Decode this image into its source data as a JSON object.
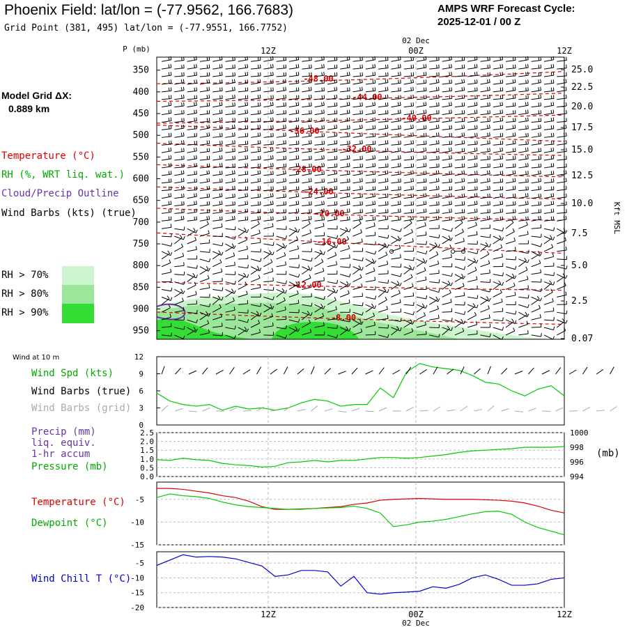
{
  "header": {
    "title": "Phoenix Field:  lat/lon = (-77.9562, 166.7683)",
    "subtitle": "Grid Point (381, 495) lat/lon = (-77.9551, 166.7752)",
    "cycle_line1": "AMPS WRF Forecast Cycle:",
    "cycle_line2": "2025-12-01 / 00  Z",
    "grid_label": "Model Grid ΔX:",
    "grid_value": "0.889 km"
  },
  "colors": {
    "temperature": "#dd0000",
    "rh": "#00aa00",
    "cloud": "#6633aa",
    "wind": "#000000",
    "grid_wind": "#aaaaaa",
    "pressure": "#00cc00",
    "windchill": "#0000cc",
    "rh70": "#cdf5cd",
    "rh80": "#9be69b",
    "rh90": "#33dd33"
  },
  "legend": {
    "temperature": "Temperature (°C)",
    "rh": "RH (%, WRT liq. wat.)",
    "cloud": "Cloud/Precip Outline",
    "wind": "Wind Barbs (kts) (true)",
    "rh70": "RH > 70%",
    "rh80": "RH > 80%",
    "rh90": "RH > 90%"
  },
  "chart_data": [
    {
      "type": "line",
      "name": "cross-section",
      "ylabel": "P (mb)",
      "ylabel_right": "Kft MSL",
      "time_ticks": [
        "12Z",
        "00Z",
        "12Z"
      ],
      "date_label": "02 Dec",
      "pressure_ticks": [
        350,
        400,
        450,
        500,
        550,
        600,
        650,
        700,
        750,
        800,
        850,
        900,
        950
      ],
      "height_ticks": [
        "25.0",
        "22.5",
        "20.0",
        "17.5",
        "15.0",
        "12.5",
        "10.0",
        "7.5",
        "5.0",
        "2.5",
        "0.07"
      ],
      "temperature_contours": [
        {
          "label": "-48.00",
          "p": 370
        },
        {
          "label": "-44.00",
          "p": 412
        },
        {
          "label": "-40.00",
          "p": 460
        },
        {
          "label": "-36.00",
          "p": 490
        },
        {
          "label": "-32.00",
          "p": 532
        },
        {
          "label": "-28.00",
          "p": 578
        },
        {
          "label": "-24.00",
          "p": 630
        },
        {
          "label": "-20.00",
          "p": 680
        },
        {
          "label": "-16.00",
          "p": 745
        },
        {
          "label": "-12.00",
          "p": 845
        },
        {
          "label": "-8.00",
          "p": 920
        }
      ]
    },
    {
      "type": "line",
      "name": "wind-10m",
      "section_title": "Wind at 10 m",
      "labels": {
        "speed": "Wind Spd (kts)",
        "barbs_true": "Wind Barbs (true)",
        "barbs_grid": "Wind Barbs (grid)"
      },
      "ylim": [
        0,
        12
      ],
      "yticks": [
        0,
        3,
        6,
        9,
        12
      ],
      "values": [
        5.6,
        4.2,
        3.6,
        3.3,
        3.6,
        2.6,
        3.3,
        2.8,
        3.0,
        2.6,
        3.0,
        3.9,
        4.5,
        4.2,
        3.3,
        3.6,
        3.6,
        6.5,
        4.8,
        9.3,
        10.8,
        10.2,
        9.9,
        9.6,
        8.7,
        7.5,
        7.2,
        6.0,
        5.1,
        6.3,
        6.9,
        5.1
      ]
    },
    {
      "type": "line",
      "name": "precip-pressure",
      "labels": {
        "precip": "Precip (mm)",
        "liq": "liq. equiv.",
        "accum": "1-hr accum",
        "pressure": "Pressure (mb)",
        "unit_right": "(mb)"
      },
      "left_ylim": [
        0,
        2.5
      ],
      "left_ticks": [
        "0.0",
        "0.5",
        "1.0",
        "1.5",
        "2.0",
        "2.5"
      ],
      "right_ylim": [
        994,
        1000
      ],
      "right_ticks": [
        994,
        996,
        998,
        1000
      ],
      "pressure_values": [
        996.3,
        996.2,
        996.5,
        996.3,
        996.2,
        995.8,
        995.6,
        995.5,
        995.3,
        995.4,
        995.9,
        996.0,
        996.2,
        996.0,
        996.2,
        996.2,
        996.4,
        996.6,
        996.6,
        996.5,
        996.6,
        996.8,
        997.0,
        997.3,
        997.5,
        997.6,
        997.7,
        997.8,
        998.0,
        998.0,
        998.0,
        998.1
      ]
    },
    {
      "type": "line",
      "name": "temp-dewpoint",
      "labels": {
        "temperature": "Temperature (°C)",
        "dewpoint": "Dewpoint (°C)"
      },
      "ylim": [
        -15,
        -1.2
      ],
      "yticks": [
        -5,
        -10,
        -15
      ],
      "series": [
        {
          "name": "Temperature",
          "values": [
            -2.6,
            -2.6,
            -2.8,
            -3.2,
            -3.6,
            -4.2,
            -4.6,
            -5.4,
            -6.6,
            -7.2,
            -7.2,
            -7.1,
            -7.0,
            -6.8,
            -6.6,
            -6.1,
            -5.8,
            -5.2,
            -5.0,
            -4.9,
            -4.8,
            -4.9,
            -5.0,
            -5.0,
            -5.0,
            -5.1,
            -5.2,
            -5.4,
            -5.8,
            -6.5,
            -7.4,
            -8.0
          ]
        },
        {
          "name": "Dewpoint",
          "values": [
            -4.6,
            -3.8,
            -4.2,
            -4.4,
            -4.8,
            -5.6,
            -6.2,
            -6.6,
            -6.8,
            -7.0,
            -7.2,
            -7.2,
            -7.0,
            -6.9,
            -6.8,
            -6.5,
            -7.0,
            -8.0,
            -11.0,
            -10.6,
            -10.0,
            -9.8,
            -9.4,
            -8.8,
            -8.2,
            -7.7,
            -7.6,
            -8.3,
            -10.0,
            -11.2,
            -12.0,
            -12.8
          ]
        }
      ]
    },
    {
      "type": "line",
      "name": "windchill",
      "labels": {
        "windchill": "Wind Chill T (°C)"
      },
      "ylim": [
        -20,
        -1.2
      ],
      "yticks": [
        -5,
        -10,
        -15,
        -20
      ],
      "values": [
        -5.8,
        -4.0,
        -2.2,
        -3.0,
        -2.8,
        -3.0,
        -3.6,
        -4.8,
        -6.0,
        -9.5,
        -9.0,
        -7.5,
        -7.5,
        -8.0,
        -12.8,
        -9.5,
        -15.0,
        -15.5,
        -15.0,
        -14.8,
        -14.5,
        -13.0,
        -13.5,
        -12.2,
        -10.0,
        -9.0,
        -10.5,
        -12.5,
        -12.5,
        -12.0,
        -10.5,
        -10.0
      ]
    }
  ]
}
